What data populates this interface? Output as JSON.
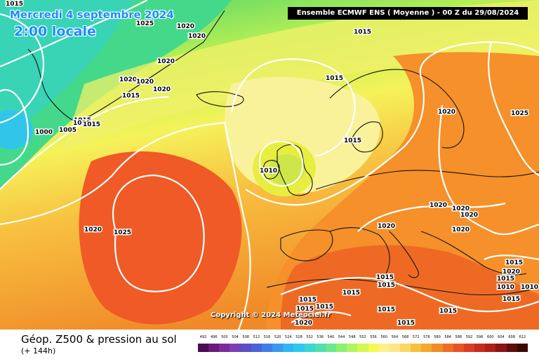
{
  "header": {
    "date": "Mercredi 4 septembre 2024",
    "time": "2:00 locale",
    "run": "Ensemble ECMWF ENS  ( Moyenne )  -  00 Z du 29/08/2024"
  },
  "copyright": "Copyright © 2024 Meteociel.fr",
  "footer": {
    "title": "Géop. Z500 & pression au sol",
    "lead": "(+ 144h)"
  },
  "legend": {
    "values": [
      "492",
      "496",
      "500",
      "504",
      "508",
      "512",
      "516",
      "520",
      "524",
      "528",
      "532",
      "536",
      "540",
      "544",
      "548",
      "552",
      "556",
      "560",
      "564",
      "568",
      "572",
      "576",
      "580",
      "584",
      "588",
      "592",
      "596",
      "600",
      "604",
      "608",
      "612"
    ],
    "colors": [
      "#4b0a55",
      "#6a1a7a",
      "#7d2a9a",
      "#7a3fb5",
      "#5a4fc5",
      "#4a63d8",
      "#3f7ee6",
      "#3a9af0",
      "#30b5f5",
      "#2fc8ee",
      "#3ad6d0",
      "#4ee0b0",
      "#6ae890",
      "#8cf070",
      "#b0f560",
      "#d4f850",
      "#f5fa50",
      "#fbf08c",
      "#fde68a",
      "#fbd860",
      "#f8c040",
      "#f5a82d",
      "#f28a25",
      "#ef6e22",
      "#e85425",
      "#dd3a24",
      "#c92a1e",
      "#b01e18",
      "#8a1512",
      "#5e0d0a",
      "#3a0705"
    ]
  },
  "isobars": [
    {
      "label": "1015"
    },
    {
      "label": "1025"
    },
    {
      "label": "1020"
    },
    {
      "label": "1020"
    },
    {
      "label": "1020"
    },
    {
      "label": "1020"
    },
    {
      "label": "1020"
    },
    {
      "label": "1020"
    },
    {
      "label": "1015"
    },
    {
      "label": "1015"
    },
    {
      "label": "1000"
    },
    {
      "label": "1005"
    },
    {
      "label": "1010"
    },
    {
      "label": "1015"
    },
    {
      "label": "1015"
    },
    {
      "label": "1015"
    },
    {
      "label": "1010"
    },
    {
      "label": "1020"
    },
    {
      "label": "1025"
    },
    {
      "label": "1020"
    },
    {
      "label": "1020"
    },
    {
      "label": "1020"
    },
    {
      "label": "1020"
    },
    {
      "label": "1020"
    },
    {
      "label": "1020"
    },
    {
      "label": "1025"
    },
    {
      "label": "1015"
    },
    {
      "label": "1015"
    },
    {
      "label": "1015"
    },
    {
      "label": "1015"
    },
    {
      "label": "1015"
    },
    {
      "label": "1015"
    },
    {
      "label": "1015"
    },
    {
      "label": "1015"
    },
    {
      "label": "1015"
    },
    {
      "label": "1015"
    },
    {
      "label": "1015"
    },
    {
      "label": "1015"
    },
    {
      "label": "1010"
    },
    {
      "label": "1010"
    },
    {
      "label": "1015"
    },
    {
      "label": "1020"
    },
    {
      "label": "1020"
    }
  ]
}
